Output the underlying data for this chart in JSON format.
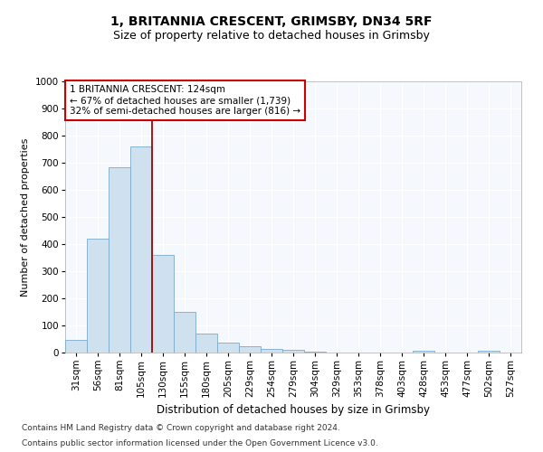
{
  "title": "1, BRITANNIA CRESCENT, GRIMSBY, DN34 5RF",
  "subtitle": "Size of property relative to detached houses in Grimsby",
  "xlabel": "Distribution of detached houses by size in Grimsby",
  "ylabel": "Number of detached properties",
  "bar_color": "#cfe0ef",
  "bar_edge_color": "#7aaac8",
  "vline_color": "#aa0000",
  "categories": [
    "31sqm",
    "56sqm",
    "81sqm",
    "105sqm",
    "130sqm",
    "155sqm",
    "180sqm",
    "205sqm",
    "229sqm",
    "254sqm",
    "279sqm",
    "304sqm",
    "329sqm",
    "353sqm",
    "378sqm",
    "403sqm",
    "428sqm",
    "453sqm",
    "477sqm",
    "502sqm",
    "527sqm"
  ],
  "values": [
    48,
    420,
    685,
    760,
    360,
    150,
    70,
    38,
    25,
    15,
    10,
    5,
    0,
    0,
    0,
    0,
    8,
    0,
    0,
    8,
    0
  ],
  "ylim": [
    0,
    1000
  ],
  "yticks": [
    0,
    100,
    200,
    300,
    400,
    500,
    600,
    700,
    800,
    900,
    1000
  ],
  "vline_x_index": 3.5,
  "annotation_text": "1 BRITANNIA CRESCENT: 124sqm\n← 67% of detached houses are smaller (1,739)\n32% of semi-detached houses are larger (816) →",
  "annotation_box_facecolor": "#ffffff",
  "annotation_box_edgecolor": "#cc0000",
  "footnote_line1": "Contains HM Land Registry data © Crown copyright and database right 2024.",
  "footnote_line2": "Contains public sector information licensed under the Open Government Licence v3.0.",
  "background_color": "#ffffff",
  "plot_background": "#f5f8fc",
  "grid_color": "#ffffff",
  "title_fontsize": 10,
  "subtitle_fontsize": 9,
  "xlabel_fontsize": 8.5,
  "ylabel_fontsize": 8,
  "tick_fontsize": 7.5,
  "annotation_fontsize": 7.5,
  "footnote_fontsize": 6.5
}
